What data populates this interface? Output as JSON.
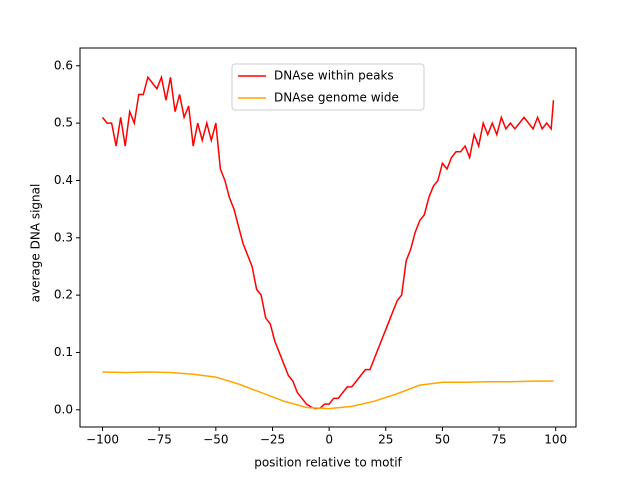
{
  "chart_data": {
    "type": "line",
    "xlabel": "position relative to motif",
    "ylabel": "average DNA signal",
    "xlim": [
      -109.95,
      108.95
    ],
    "ylim": [
      -0.03,
      0.631
    ],
    "xticks": [
      {
        "value": -100,
        "label": "−100"
      },
      {
        "value": -75,
        "label": "−75"
      },
      {
        "value": -50,
        "label": "−50"
      },
      {
        "value": -25,
        "label": "−25"
      },
      0,
      25,
      50,
      75,
      100
    ],
    "yticks": [
      {
        "value": 0,
        "label": "0.0"
      },
      0.1,
      0.2,
      0.3,
      0.4,
      0.5,
      0.6
    ],
    "legend": "upper center",
    "series": [
      {
        "name": "DNAse within peaks",
        "color": "#ff0000",
        "x": [
          -100,
          -98,
          -96,
          -94,
          -92,
          -90,
          -88,
          -86,
          -84,
          -82,
          -80,
          -78,
          -76,
          -74,
          -72,
          -70,
          -68,
          -66,
          -64,
          -62,
          -60,
          -58,
          -56,
          -54,
          -52,
          -50,
          -48,
          -46,
          -44,
          -42,
          -40,
          -38,
          -36,
          -34,
          -32,
          -30,
          -28,
          -26,
          -24,
          -22,
          -20,
          -18,
          -16,
          -14,
          -12,
          -10,
          -8,
          -6,
          -4,
          -2,
          0,
          2,
          4,
          6,
          8,
          10,
          12,
          14,
          16,
          18,
          20,
          22,
          24,
          26,
          28,
          30,
          32,
          34,
          36,
          38,
          40,
          42,
          44,
          46,
          48,
          50,
          52,
          54,
          56,
          58,
          60,
          62,
          64,
          66,
          68,
          70,
          72,
          74,
          76,
          78,
          80,
          82,
          84,
          86,
          88,
          90,
          92,
          94,
          96,
          98,
          99
        ],
        "values": [
          0.51,
          0.5,
          0.5,
          0.46,
          0.51,
          0.46,
          0.52,
          0.5,
          0.55,
          0.55,
          0.58,
          0.57,
          0.56,
          0.58,
          0.54,
          0.58,
          0.52,
          0.55,
          0.51,
          0.53,
          0.46,
          0.5,
          0.47,
          0.5,
          0.47,
          0.5,
          0.42,
          0.4,
          0.37,
          0.35,
          0.32,
          0.29,
          0.27,
          0.25,
          0.21,
          0.2,
          0.16,
          0.15,
          0.12,
          0.1,
          0.08,
          0.06,
          0.05,
          0.03,
          0.02,
          0.01,
          0.005,
          0.002,
          0.003,
          0.01,
          0.01,
          0.02,
          0.02,
          0.03,
          0.04,
          0.04,
          0.05,
          0.06,
          0.07,
          0.07,
          0.09,
          0.11,
          0.13,
          0.15,
          0.17,
          0.19,
          0.2,
          0.26,
          0.28,
          0.31,
          0.33,
          0.34,
          0.37,
          0.39,
          0.4,
          0.43,
          0.42,
          0.44,
          0.45,
          0.45,
          0.46,
          0.44,
          0.48,
          0.46,
          0.5,
          0.48,
          0.5,
          0.48,
          0.51,
          0.49,
          0.5,
          0.49,
          0.5,
          0.51,
          0.5,
          0.49,
          0.51,
          0.49,
          0.5,
          0.49,
          0.54
        ]
      },
      {
        "name": "DNAse genome wide",
        "color": "#ffa500",
        "x": [
          -100,
          -90,
          -80,
          -70,
          -60,
          -50,
          -40,
          -30,
          -20,
          -10,
          0,
          10,
          20,
          30,
          40,
          50,
          60,
          70,
          80,
          90,
          99
        ],
        "values": [
          0.066,
          0.065,
          0.066,
          0.065,
          0.062,
          0.057,
          0.045,
          0.03,
          0.015,
          0.004,
          0.002,
          0.006,
          0.015,
          0.028,
          0.043,
          0.048,
          0.048,
          0.049,
          0.049,
          0.05,
          0.05
        ]
      }
    ]
  }
}
